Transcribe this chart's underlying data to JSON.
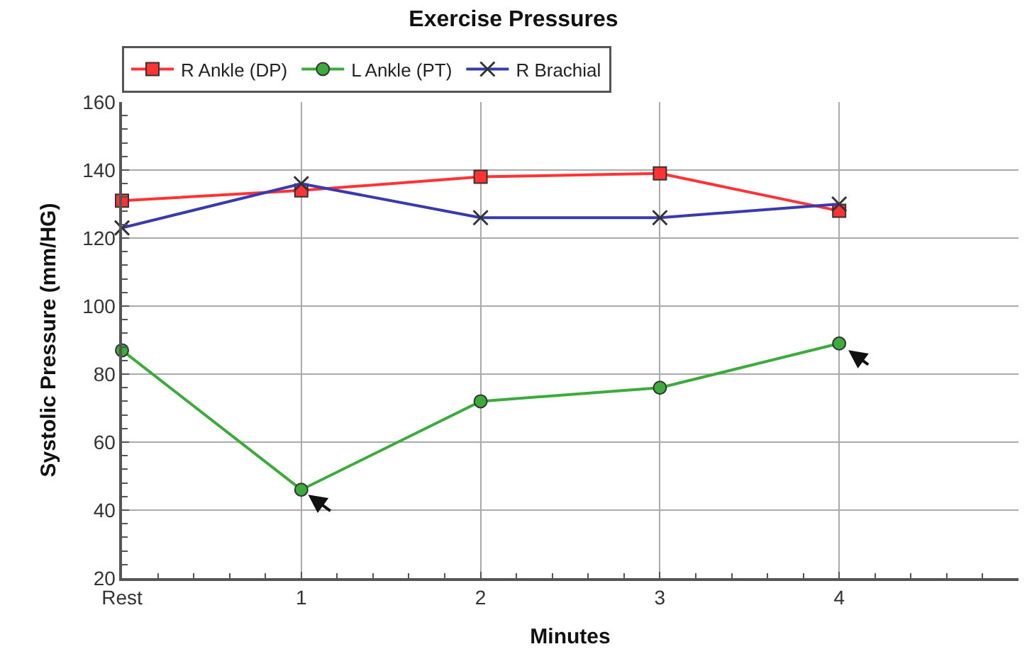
{
  "chart_data": {
    "type": "line",
    "title": "Exercise Pressures",
    "xlabel": "Minutes",
    "ylabel": "Systolic Pressure (mm/HG)",
    "x": [
      0,
      1,
      2,
      3,
      4
    ],
    "xlim": [
      0,
      5
    ],
    "xticks": [
      {
        "value": 0,
        "label": "Rest"
      },
      1,
      2,
      3,
      4
    ],
    "ylim": [
      20,
      160
    ],
    "yticks": [
      20,
      40,
      60,
      80,
      100,
      120,
      140,
      160
    ],
    "grid": true,
    "legend": "top",
    "line_style": "solid",
    "series": [
      {
        "name": "R Ankle (DP)",
        "color": "#ff3333",
        "marker": "square",
        "values": [
          131,
          134,
          138,
          139,
          128
        ]
      },
      {
        "name": "L Ankle (PT)",
        "color": "#3cab3c",
        "marker": "circle",
        "values": [
          87,
          46,
          72,
          76,
          89
        ]
      },
      {
        "name": "R Brachial",
        "color": "#3a3ab0",
        "marker": "cross",
        "values": [
          123,
          136,
          126,
          126,
          130
        ]
      }
    ]
  }
}
